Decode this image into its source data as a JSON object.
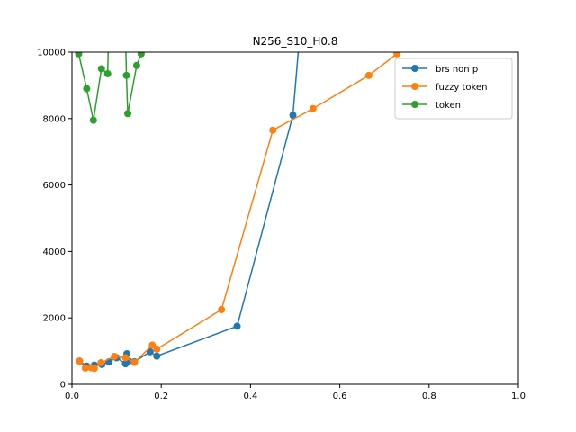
{
  "chart_data": {
    "type": "line",
    "title": "N256_S10_H0.8",
    "xlabel": "",
    "ylabel": "",
    "xlim": [
      0.0,
      1.0
    ],
    "ylim": [
      0,
      10000
    ],
    "xticks": [
      0.0,
      0.2,
      0.4,
      0.6,
      0.8,
      1.0
    ],
    "xtick_labels": [
      "0.0",
      "0.2",
      "0.4",
      "0.6",
      "0.8",
      "1.0"
    ],
    "yticks": [
      0,
      2000,
      4000,
      6000,
      8000,
      10000
    ],
    "ytick_labels": [
      "0",
      "2000",
      "4000",
      "6000",
      "8000",
      "10000"
    ],
    "grid": false,
    "legend_position": "top-right",
    "series": [
      {
        "name": "brs non p",
        "color": "#1f77b4",
        "x": [
          0.017,
          0.033,
          0.05,
          0.067,
          0.083,
          0.1,
          0.12,
          0.123,
          0.127,
          0.14,
          0.175,
          0.19,
          0.37,
          0.495,
          0.51
        ],
        "y": [
          700,
          550,
          580,
          600,
          680,
          800,
          620,
          920,
          700,
          680,
          980,
          850,
          1750,
          8100,
          10500
        ]
      },
      {
        "name": "fuzzy token",
        "color": "#ff7f0e",
        "x": [
          0.017,
          0.03,
          0.043,
          0.05,
          0.065,
          0.095,
          0.12,
          0.14,
          0.18,
          0.19,
          0.335,
          0.45,
          0.54,
          0.665,
          0.728,
          0.74
        ],
        "y": [
          700,
          490,
          500,
          480,
          650,
          840,
          800,
          660,
          1180,
          1060,
          2250,
          7650,
          8300,
          9300,
          9950,
          10300
        ]
      },
      {
        "name": "token",
        "color": "#2ca02c",
        "x": [
          0.015,
          0.033,
          0.048,
          0.066,
          0.08,
          0.082,
          0.12,
          0.122,
          0.125,
          0.145,
          0.155,
          0.16
        ],
        "y": [
          9950,
          8900,
          7950,
          9500,
          9350,
          10500,
          10500,
          9300,
          8150,
          9600,
          9950,
          10100
        ]
      }
    ]
  }
}
